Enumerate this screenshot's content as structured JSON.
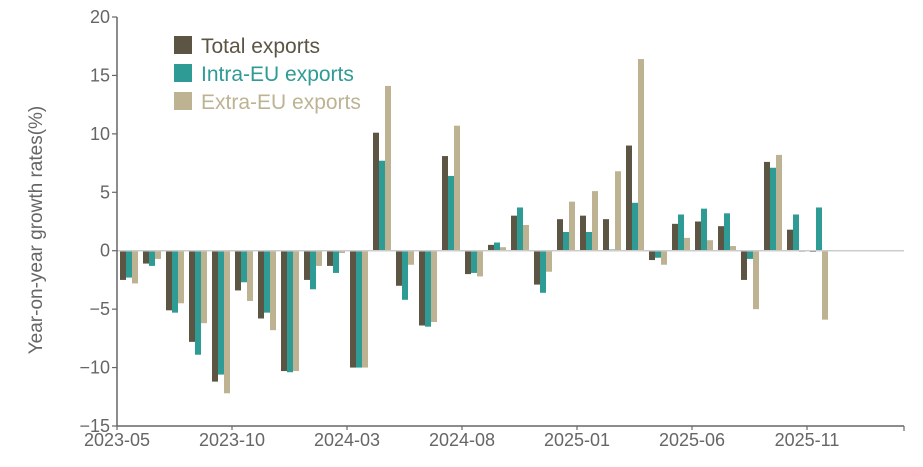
{
  "chart_data": {
    "type": "bar",
    "title": "",
    "xlabel": "",
    "ylabel": "Year-on-year growth rates(%)",
    "ylim": [
      -15,
      20
    ],
    "yticks": [
      20,
      15,
      10,
      5,
      0,
      -5,
      -10,
      -15
    ],
    "grid": false,
    "legend_position": "top-left",
    "categories": [
      "2023-05",
      "2023-06",
      "2023-07",
      "2023-08",
      "2023-09",
      "2023-10",
      "2023-11",
      "2023-12",
      "2024-01",
      "2024-02",
      "2024-03",
      "2024-04",
      "2024-05",
      "2024-06",
      "2024-07",
      "2024-08",
      "2024-09",
      "2024-10",
      "2024-11",
      "2024-12",
      "2025-01",
      "2025-02",
      "2025-03",
      "2025-04",
      "2025-05",
      "2025-06",
      "2025-07",
      "2025-08",
      "2025-09",
      "2025-10",
      "2025-11"
    ],
    "xtick_labels": [
      "2023-05",
      "2023-10",
      "2024-03",
      "2024-08",
      "2025-01",
      "2025-06",
      "2025-11"
    ],
    "series": [
      {
        "name": "Total exports",
        "color": "#5c5544",
        "values": [
          -2.5,
          -1.1,
          -5.1,
          -7.8,
          -11.2,
          -3.4,
          -5.8,
          -10.3,
          -2.5,
          -1.3,
          -10.0,
          10.1,
          -3.0,
          -6.4,
          8.1,
          -2.0,
          0.5,
          3.0,
          -2.9,
          2.7,
          3.0,
          2.7,
          9.0,
          -0.8,
          2.3,
          2.5,
          2.1,
          -2.5,
          7.6,
          1.8,
          -0.1
        ]
      },
      {
        "name": "Intra-EU exports",
        "color": "#2e9b94",
        "values": [
          -2.3,
          -1.3,
          -5.3,
          -8.9,
          -10.6,
          -2.7,
          -5.3,
          -10.4,
          -3.3,
          -1.9,
          -10.0,
          7.7,
          -4.2,
          -6.5,
          6.4,
          -1.9,
          0.7,
          3.7,
          -3.6,
          1.6,
          1.6,
          0.1,
          4.1,
          -0.6,
          3.1,
          3.6,
          3.2,
          -0.7,
          7.1,
          3.1,
          3.7
        ]
      },
      {
        "name": "Extra-EU exports",
        "color": "#bdb393",
        "values": [
          -2.8,
          -0.7,
          -4.5,
          -6.2,
          -12.2,
          -4.3,
          -6.8,
          -10.3,
          -1.3,
          -0.2,
          -10.0,
          14.1,
          -1.2,
          -6.1,
          10.7,
          -2.2,
          0.3,
          2.2,
          -1.8,
          4.2,
          5.1,
          6.8,
          16.4,
          -1.2,
          1.1,
          0.9,
          0.4,
          -5.0,
          8.2,
          -0.1,
          -5.9
        ]
      }
    ]
  },
  "colors": {
    "axis": "#666666",
    "zero_line": "#cccccc",
    "text": "#666666"
  }
}
